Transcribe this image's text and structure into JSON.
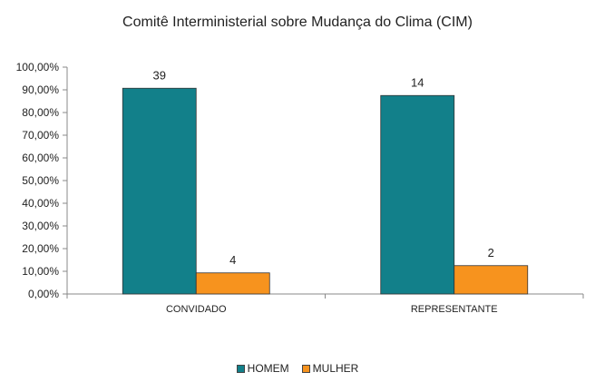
{
  "chart_data": {
    "type": "bar",
    "title": "Comitê Interministerial sobre Mudança do Clima (CIM)",
    "xlabel": "",
    "ylabel": "",
    "categories": [
      "CONVIDADO",
      "REPRESENTANTE"
    ],
    "series": [
      {
        "name": "HOMEM",
        "color": "#12808A",
        "values": [
          0.907,
          0.875
        ],
        "labels": [
          "39",
          "14"
        ]
      },
      {
        "name": "MULHER",
        "color": "#F7931E",
        "values": [
          0.093,
          0.125
        ],
        "labels": [
          "4",
          "2"
        ]
      }
    ],
    "ylim": [
      0,
      1
    ],
    "yticks": [
      "0,00%",
      "10,00%",
      "20,00%",
      "30,00%",
      "40,00%",
      "50,00%",
      "60,00%",
      "70,00%",
      "80,00%",
      "90,00%",
      "100,00%"
    ],
    "grid": false,
    "legend_position": "bottom"
  }
}
